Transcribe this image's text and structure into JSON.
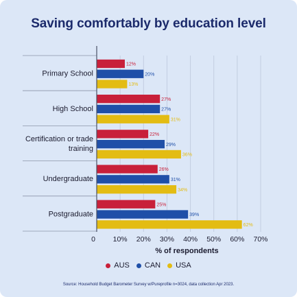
{
  "title": "Saving comfortably by education level",
  "source": "Source: Household Budget Barometer Survey w/Pureprofile n=3024, data collection Apr 2023.",
  "chart_data": {
    "type": "bar",
    "orientation": "horizontal",
    "categories": [
      "Primary School",
      "High School",
      "Certification or trade training",
      "Undergraduate",
      "Postgraduate"
    ],
    "series": [
      {
        "name": "AUS",
        "color": "#c8203a",
        "values": [
          12,
          27,
          22,
          26,
          25
        ]
      },
      {
        "name": "CAN",
        "color": "#1f4fa8",
        "values": [
          20,
          27,
          29,
          31,
          39
        ]
      },
      {
        "name": "USA",
        "color": "#e3bc13",
        "values": [
          13,
          31,
          36,
          34,
          62
        ]
      }
    ],
    "xlabel": "% of respondents",
    "xlim": [
      0,
      70
    ],
    "x_ticks": [
      "0",
      "10%",
      "20%",
      "30%",
      "40%",
      "50%",
      "60%",
      "70%"
    ],
    "value_suffix": "%",
    "grid": true,
    "legend_position": "bottom"
  }
}
